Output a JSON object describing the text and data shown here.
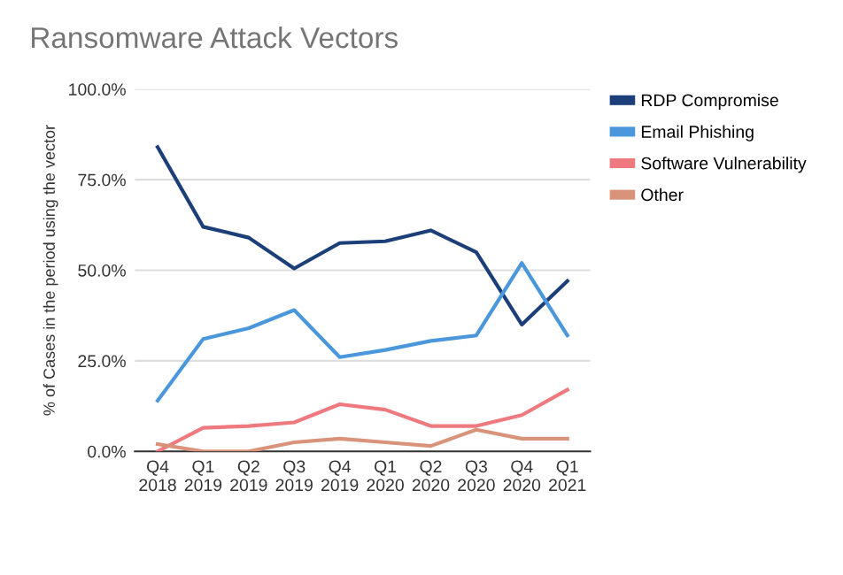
{
  "chart_data": {
    "type": "line",
    "title": "Ransomware Attack Vectors",
    "ylabel": "% of Cases in the period using the vector",
    "categories": [
      "Q4\n2018",
      "Q1\n2019",
      "Q2\n2019",
      "Q3\n2019",
      "Q4\n2019",
      "Q1\n2020",
      "Q2\n2020",
      "Q3\n2020",
      "Q4\n2020",
      "Q1\n2021"
    ],
    "series": [
      {
        "name": "RDP Compromise",
        "color": "#1c3f7a",
        "values": [
          84,
          62,
          59,
          50.5,
          57.5,
          58,
          61,
          55,
          35,
          47
        ]
      },
      {
        "name": "Email Phishing",
        "color": "#4a97db",
        "values": [
          14,
          31,
          34,
          39,
          26,
          28,
          30.5,
          32,
          52,
          32
        ]
      },
      {
        "name": "Software Vulnerability",
        "color": "#ee7a7f",
        "values": [
          0,
          6.5,
          7,
          8,
          13,
          11.5,
          7,
          7,
          10,
          17
        ]
      },
      {
        "name": "Other",
        "color": "#d8937a",
        "values": [
          2,
          0,
          0,
          2.5,
          3.5,
          2.5,
          1.5,
          6,
          3.5,
          3.5
        ]
      }
    ],
    "ylim": [
      0,
      100
    ],
    "yticks": [
      {
        "value": 0,
        "label": "0.0%"
      },
      {
        "value": 25,
        "label": "25.0%"
      },
      {
        "value": 50,
        "label": "50.0%"
      },
      {
        "value": 75,
        "label": "75.0%"
      },
      {
        "value": 100,
        "label": "100.0%"
      }
    ],
    "grid": "y",
    "legend": "top right",
    "marker": "none",
    "line_style": "solid"
  }
}
